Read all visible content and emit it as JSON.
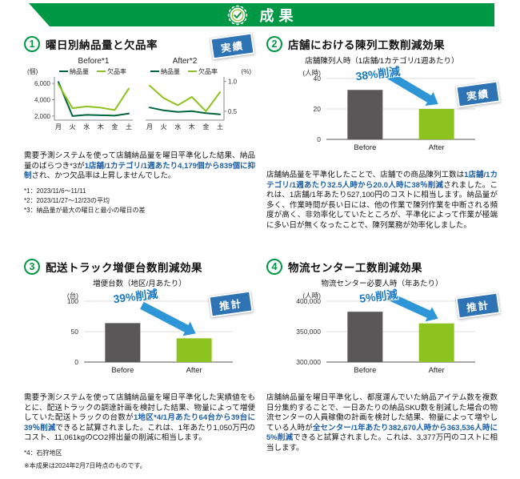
{
  "colors": {
    "green": "#009844",
    "dark_green": "#00653b",
    "light_green": "#8dc31f",
    "bar_gray": "#595757",
    "badge_blue": "#2e74b5",
    "arrow_blue": "#2e96d6",
    "highlight_blue": "#1c5fa8"
  },
  "header": {
    "title": "成果"
  },
  "sections": [
    {
      "number": "1",
      "title": "曜日別納品量と欠品率",
      "badge": "実績",
      "body": [
        {
          "t": "需要予測システムを使って店舗納品量を曜日平準化した結果、納品量のばらつき*3が",
          "h": false
        },
        {
          "t": "1店舗/1カテゴリ/1週あたり4,179個から839個に抑制",
          "h": true
        },
        {
          "t": "され、かつ欠品率は上昇しませんでした。",
          "h": false
        }
      ],
      "footnotes": [
        "*1：2023/11/6〜11/11",
        "*2：2023/11/27〜12/23の平均",
        "*3：納品量が最大の曜日と最小の曜日の差"
      ]
    },
    {
      "number": "2",
      "title": "店舗における陳列工数削減効果",
      "badge": "実績",
      "body": [
        {
          "t": "店舗納品量を平準化したことで、店舗での商品陳列工数は",
          "h": false
        },
        {
          "t": "1店舗/1カテゴリ/1週あたり32.5人時から20.0人時に38％削減",
          "h": true
        },
        {
          "t": "されました。これは、1店舗/1年あたり527,100円のコストに相当します。納品量が多く、作業時間が長い日には、他の作業で陳列作業を中断される頻度が高く、非効率化していたところが、平準化によって作業が極端に多い日が無くなったことで、陳列業務が効率化しました。",
          "h": false
        }
      ],
      "footnotes": []
    },
    {
      "number": "3",
      "title": "配送トラック増便台数削減効果",
      "badge": "推計",
      "body": [
        {
          "t": "需要予測システムを使って店舗納品量を曜日平準化した実績値をもとに、配送トラックの調達計画を検討した結果、物量によって増便していた配送トラックの台数が",
          "h": false
        },
        {
          "t": "1地区*4/1月あたり64台から39台に39％削減",
          "h": true
        },
        {
          "t": "できると試算されました。これは、1年あたり1,050万円のコスト、11,061kgのCO2排出量の削減に相当します。",
          "h": false
        }
      ],
      "footnotes": [
        "*4：石狩地区"
      ]
    },
    {
      "number": "4",
      "title": "物流センター工数削減効果",
      "badge": "推計",
      "body": [
        {
          "t": "店舗納品量を曜日平準化し、都度運んでいた納品アイテム数を複数日分集約することで、一日あたりの納品SKU数を削減した場合の物流センターの人員稼働の計画を検討した結果、物量によって増やしている人時が",
          "h": false
        },
        {
          "t": "全センター/1年あたり382,670人時から363,536人時に5%削減",
          "h": true
        },
        {
          "t": "できると試算されました。これは、3,377万円のコストに相当します。",
          "h": false
        }
      ],
      "footnotes": []
    }
  ],
  "page_footnote": "※本成果は2024年2月7日時点のものです。",
  "chart_data": [
    {
      "id": "before_line",
      "type": "line",
      "title": "Before*1",
      "x": [
        "月",
        "火",
        "水",
        "木",
        "金",
        "土"
      ],
      "series": [
        {
          "name": "納品量",
          "axis": "left",
          "color": "#00653b",
          "values": [
            6179,
            2000,
            2150,
            2100,
            2050,
            2300
          ]
        },
        {
          "name": "欠品率",
          "axis": "right",
          "color": "#8dc31f",
          "values": [
            0.95,
            0.55,
            0.58,
            0.56,
            0.52,
            0.88
          ]
        }
      ],
      "labels_side": "left",
      "axis_unit": "(個)",
      "yticks": [
        2000,
        4000,
        6000
      ],
      "ytick_labels": [
        "2,000",
        "4,000",
        "6,000"
      ],
      "left_range": [
        1500,
        6600
      ],
      "right_range": [
        0.35,
        1.05
      ]
    },
    {
      "id": "after_line",
      "type": "line",
      "title": "After*2",
      "x": [
        "月",
        "火",
        "水",
        "木",
        "金",
        "土"
      ],
      "series": [
        {
          "name": "納品量",
          "axis": "left",
          "color": "#00653b",
          "values": [
            3050,
            2700,
            2500,
            2600,
            2350,
            2211
          ]
        },
        {
          "name": "欠品率",
          "axis": "right",
          "color": "#8dc31f",
          "values": [
            0.93,
            0.72,
            0.6,
            0.74,
            0.5,
            0.82
          ]
        }
      ],
      "labels_side": "right",
      "axis_unit": "(%)",
      "yticks": [
        0.5,
        1.0
      ],
      "ytick_labels": [
        "0.5",
        "1.0"
      ],
      "left_range": [
        1500,
        6600
      ],
      "right_range": [
        0.35,
        1.05
      ]
    },
    {
      "id": "shelf_bar",
      "type": "bar",
      "title": "店舗陳列人時（1店舗/1カテゴリ/1週あたり）",
      "axis_unit": "(人時)",
      "categories": [
        "Before",
        "After"
      ],
      "values": [
        32.5,
        20.0
      ],
      "colors": [
        "#595757",
        "#8dc31f"
      ],
      "ylim": [
        0,
        40
      ],
      "yticks": [
        0,
        20,
        40
      ],
      "ytick_labels": [
        "0",
        "20",
        "40"
      ],
      "reduction_label": "38%削減"
    },
    {
      "id": "truck_bar",
      "type": "bar",
      "title": "増便台数（地区/月あたり）",
      "axis_unit": "(台)",
      "categories": [
        "Before",
        "After"
      ],
      "values": [
        64,
        39
      ],
      "colors": [
        "#595757",
        "#8dc31f"
      ],
      "ylim": [
        0,
        100
      ],
      "yticks": [
        0,
        50,
        100
      ],
      "ytick_labels": [
        "0",
        "50",
        "100"
      ],
      "reduction_label": "39%削減"
    },
    {
      "id": "center_bar",
      "type": "bar",
      "title": "物流センター必要人時（年あたり）",
      "axis_unit": "(人時)",
      "categories": [
        "Before",
        "After"
      ],
      "values": [
        382670,
        363536
      ],
      "colors": [
        "#595757",
        "#8dc31f"
      ],
      "ylim": [
        300000,
        400000
      ],
      "yticks": [
        300000,
        350000,
        400000
      ],
      "ytick_labels": [
        "300,000",
        "350,000",
        "400,000"
      ],
      "reduction_label": "5%削減"
    }
  ]
}
